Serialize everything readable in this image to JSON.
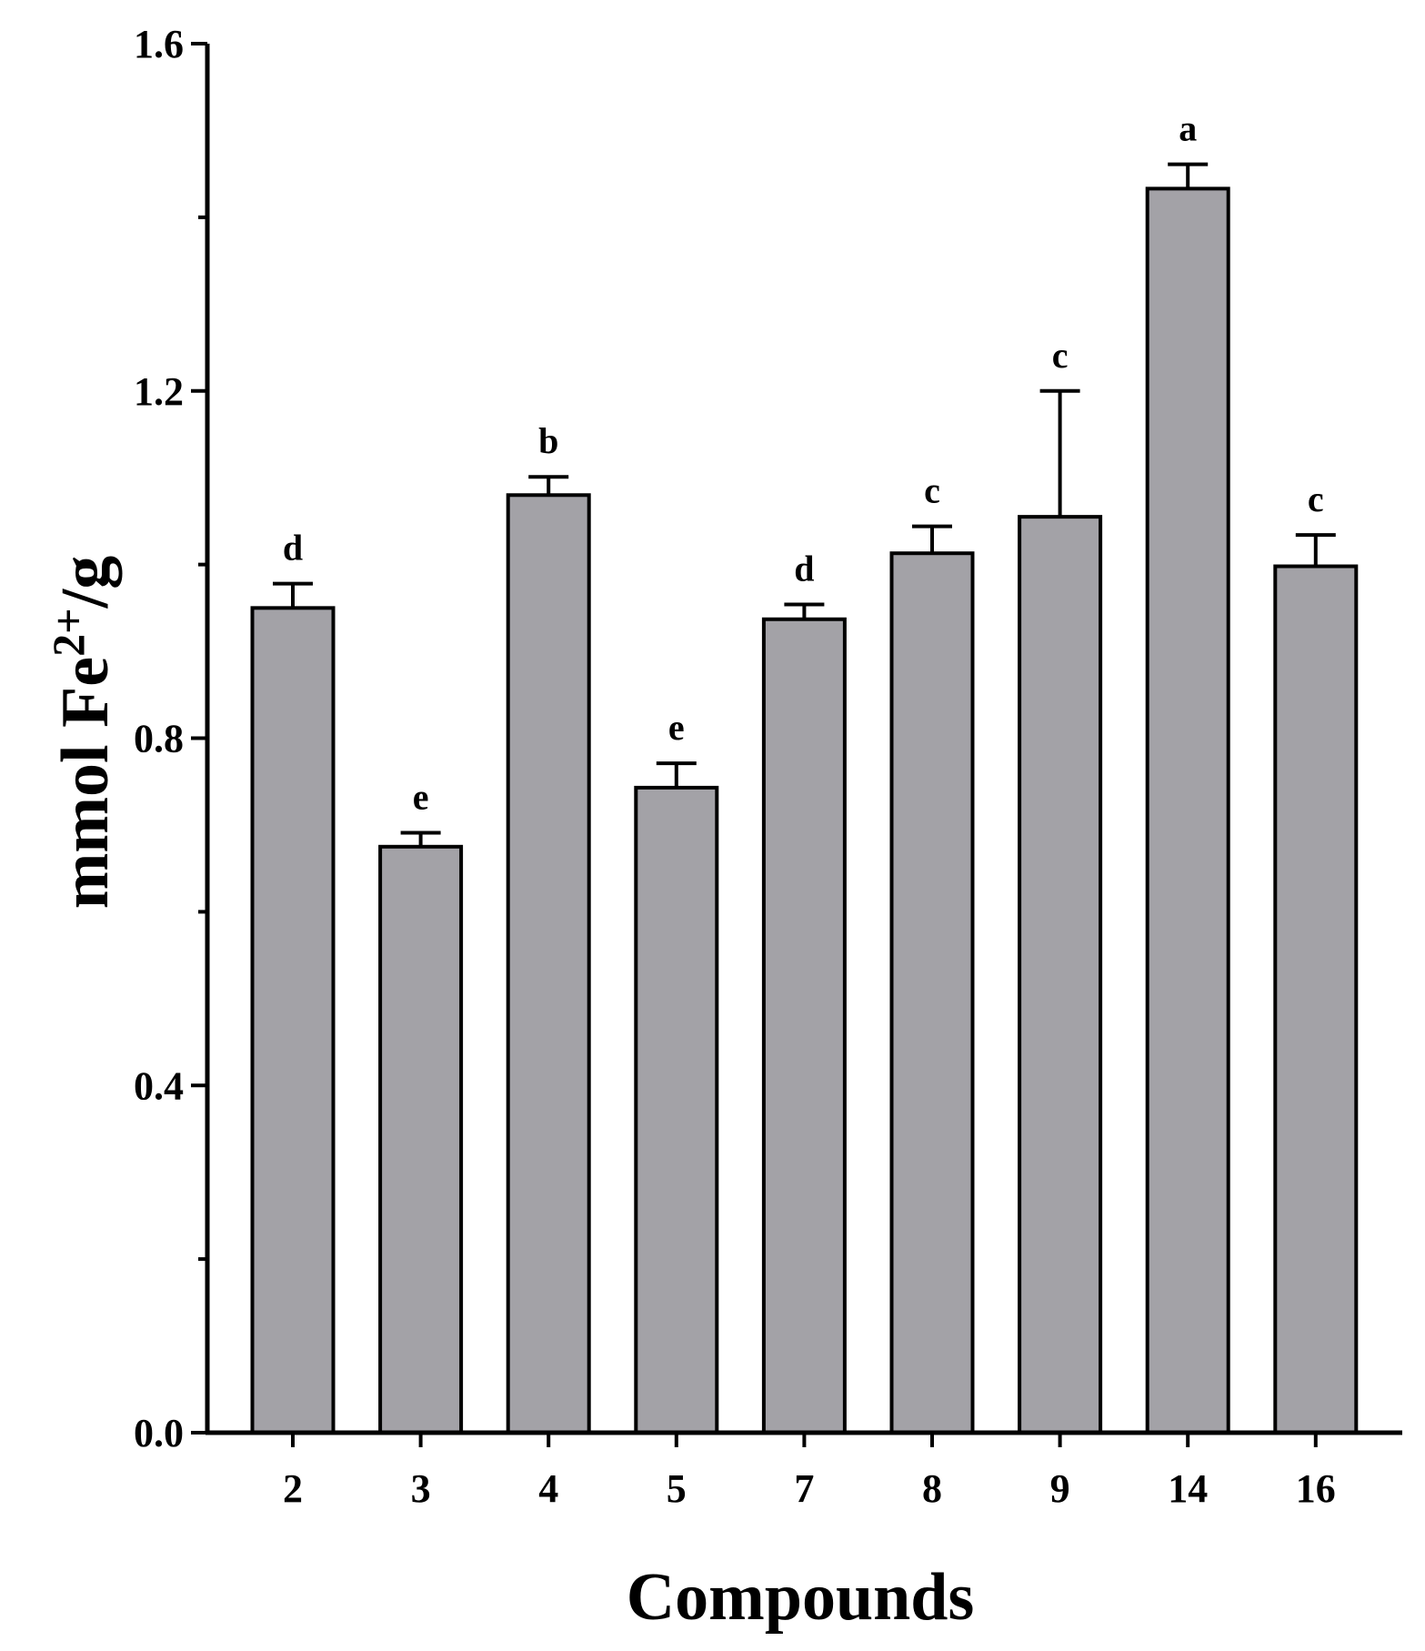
{
  "chart_data": {
    "type": "bar",
    "title": "",
    "xlabel": "Compounds",
    "ylabel": {
      "prefix": "mmol Fe",
      "superscript": "2+",
      "suffix": "/g"
    },
    "categories": [
      "2",
      "3",
      "4",
      "5",
      "7",
      "8",
      "9",
      "14",
      "16"
    ],
    "values": [
      0.95,
      0.675,
      1.08,
      0.743,
      0.937,
      1.013,
      1.055,
      1.433,
      0.998
    ],
    "errors": [
      0.028,
      0.016,
      0.021,
      0.028,
      0.017,
      0.031,
      0.145,
      0.028,
      0.036
    ],
    "letters": [
      "d",
      "e",
      "b",
      "e",
      "d",
      "c",
      "c",
      "a",
      "c"
    ],
    "ylim": [
      0,
      1.6
    ],
    "yticks": [
      0.0,
      0.4,
      0.8,
      1.2,
      1.6
    ],
    "ytick_labels": [
      "0.0",
      "0.4",
      "0.8",
      "1.2",
      "1.6"
    ],
    "minor_ticks": [
      0.2,
      0.6,
      1.0,
      1.4
    ],
    "bar_color": "#a3a2a7",
    "edge_color": "#000000",
    "grid": false,
    "legend": "none"
  }
}
